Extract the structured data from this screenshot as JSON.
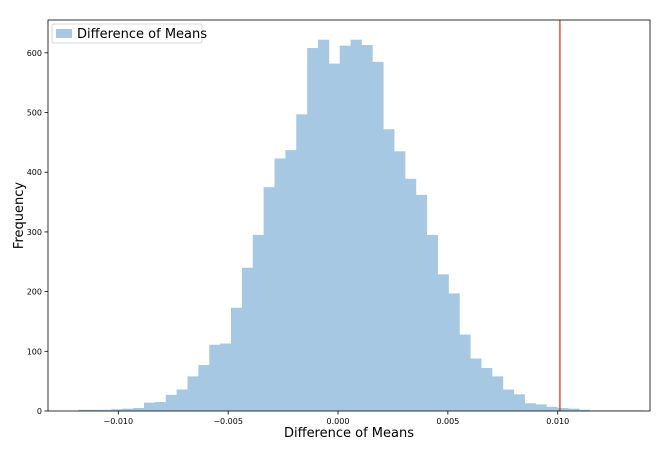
{
  "chart_data": {
    "type": "bar",
    "title": "",
    "xlabel": "Difference of Means",
    "ylabel": "Frequency",
    "xlim": [
      -0.0132,
      0.0142
    ],
    "ylim": [
      0,
      655
    ],
    "bin_start": -0.0118,
    "bin_width": 0.000495,
    "grid": false,
    "legend_position": "top-left",
    "x_ticks": [
      -0.01,
      -0.005,
      0.0,
      0.005,
      0.01
    ],
    "x_tick_labels": [
      "−0.010",
      "−0.005",
      "0.000",
      "0.005",
      "0.010"
    ],
    "y_ticks": [
      0,
      100,
      200,
      300,
      400,
      500,
      600
    ],
    "y_tick_labels": [
      "0",
      "100",
      "200",
      "300",
      "400",
      "500",
      "600"
    ],
    "series": [
      {
        "name": "Difference of Means",
        "color": "#a6c8e2",
        "values": [
          2,
          2,
          2,
          3,
          4,
          5,
          14,
          15,
          27,
          36,
          58,
          77,
          111,
          113,
          173,
          240,
          295,
          375,
          423,
          437,
          497,
          608,
          622,
          582,
          612,
          622,
          613,
          585,
          472,
          435,
          389,
          362,
          295,
          229,
          197,
          128,
          88,
          72,
          58,
          36,
          28,
          13,
          11,
          7,
          5,
          4,
          2,
          1,
          1,
          1,
          1,
          1
        ]
      }
    ],
    "vline": {
      "x": 0.0101,
      "color": "#d62728"
    }
  }
}
